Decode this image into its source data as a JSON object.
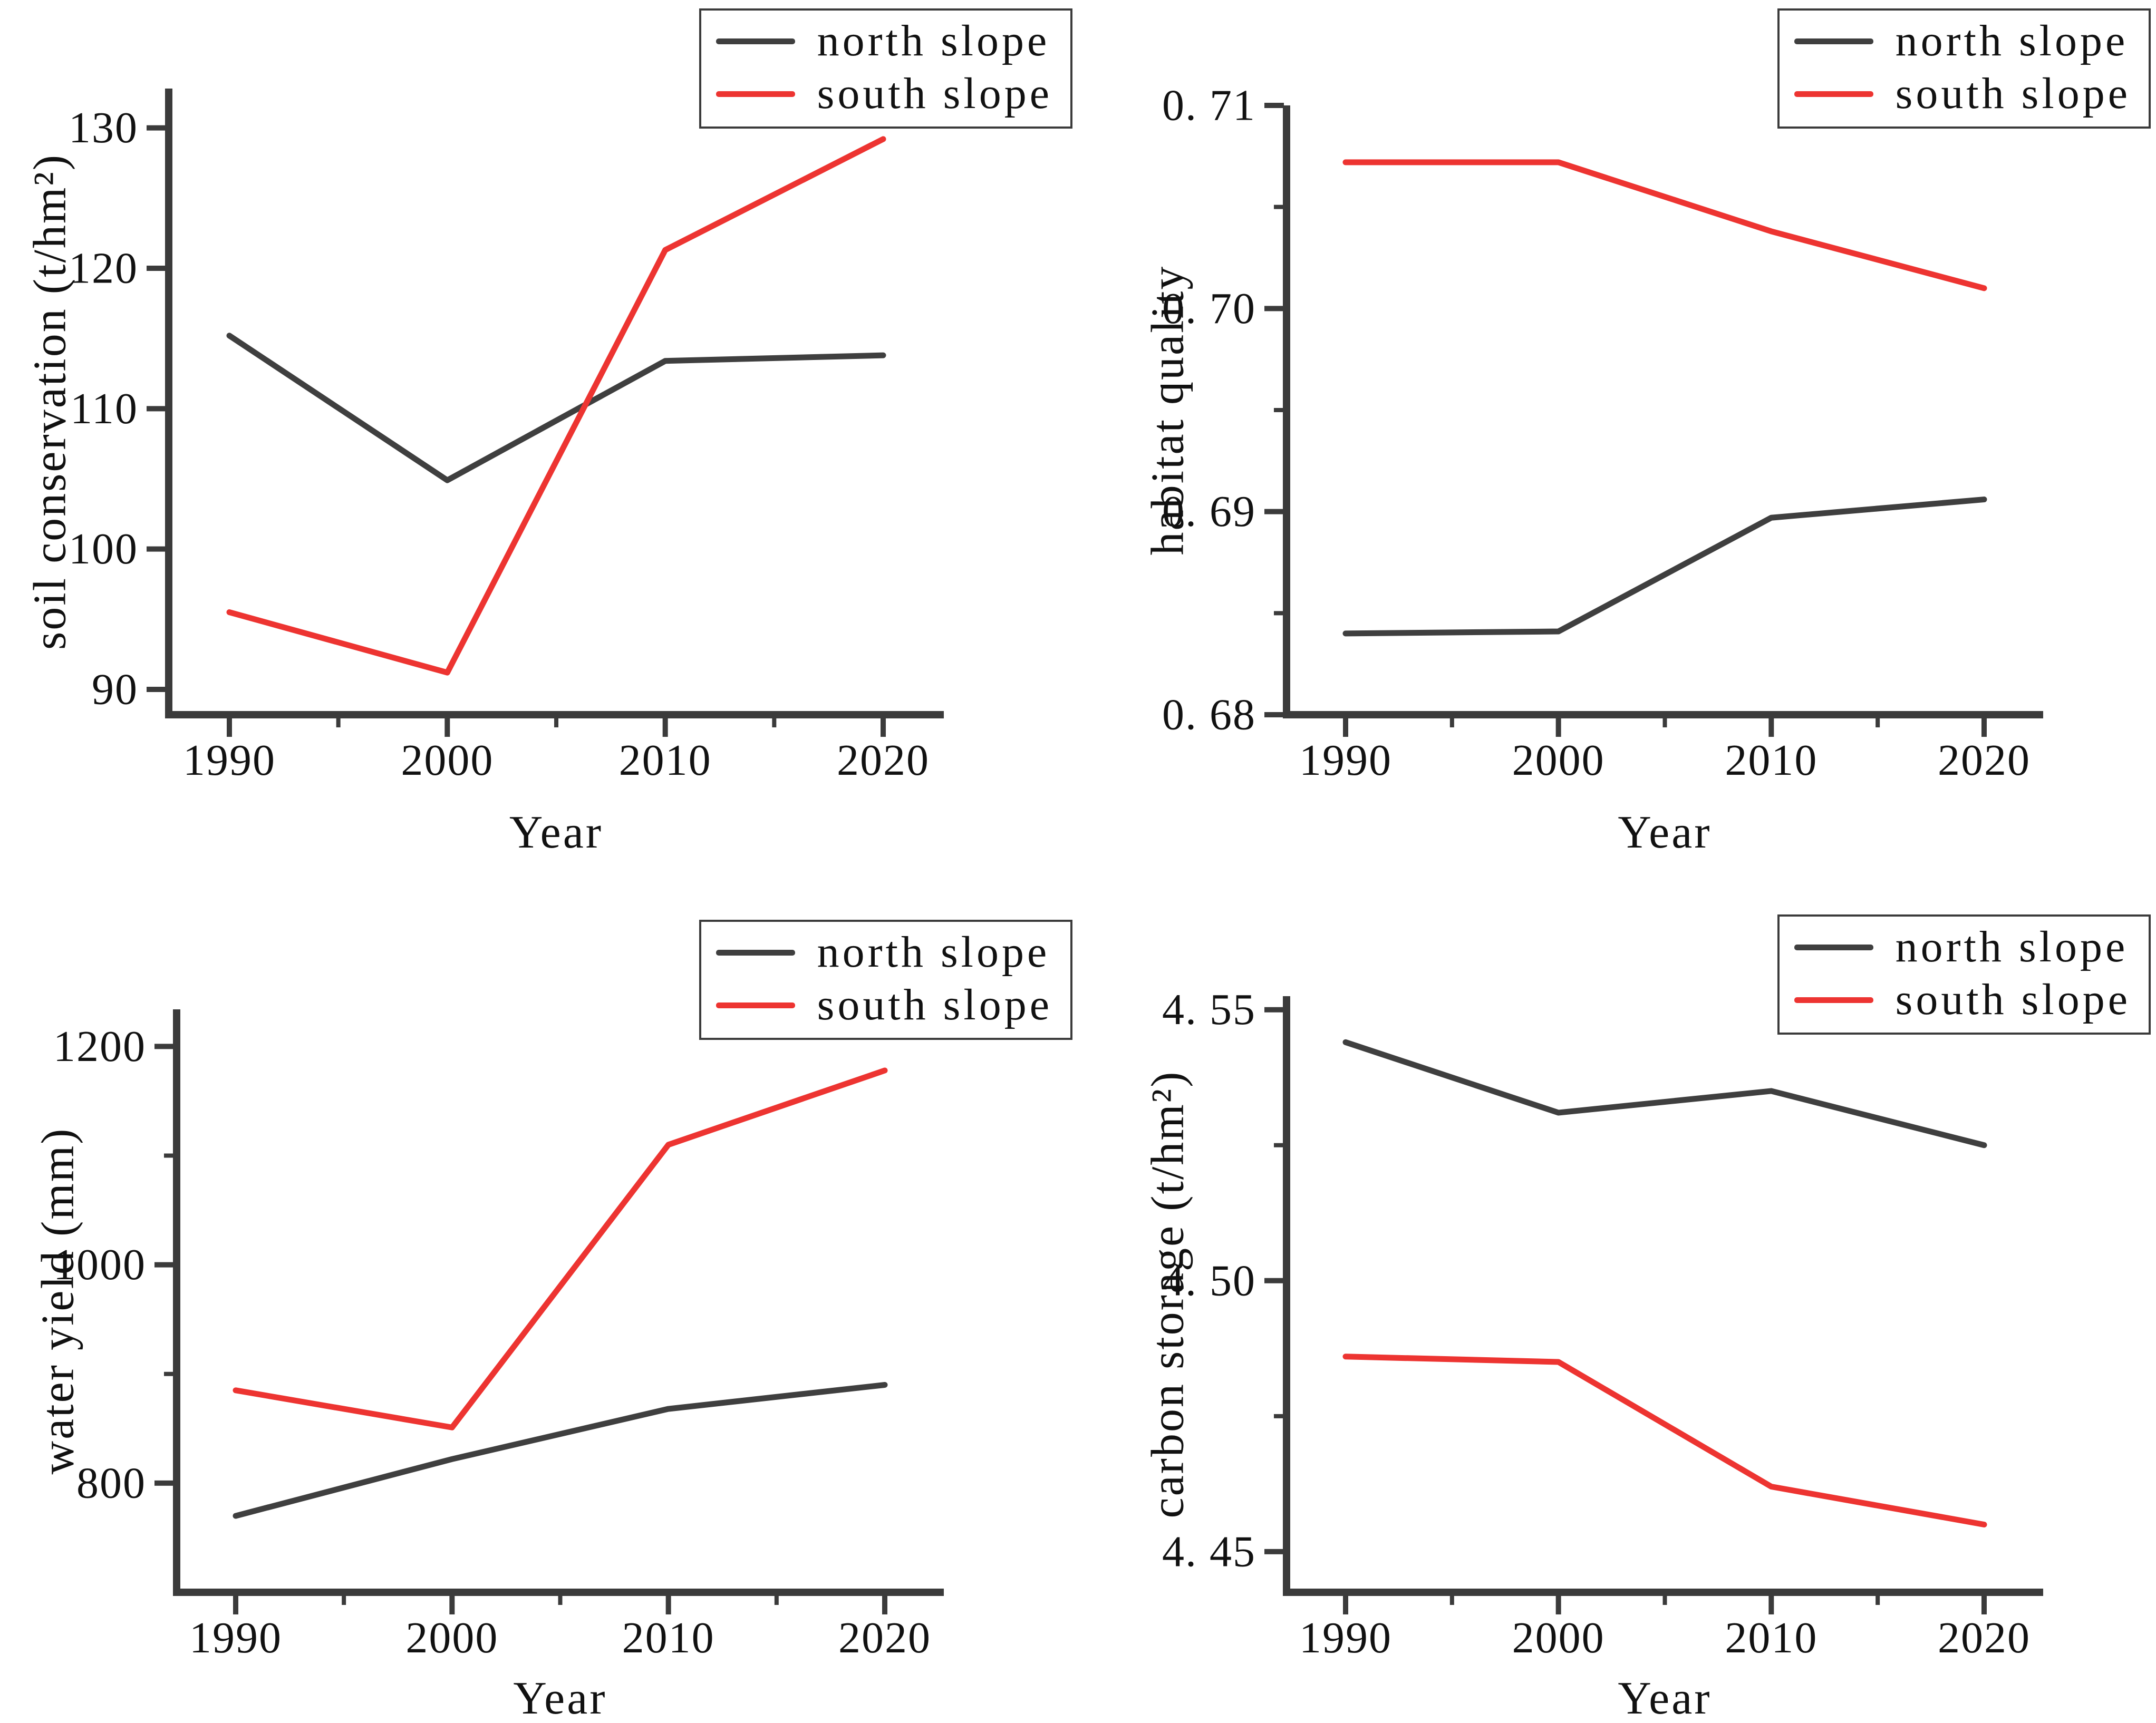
{
  "page": {
    "background": "#ffffff"
  },
  "colors": {
    "north_slope": "#3f3f3f",
    "south_slope": "#ed3431",
    "axis": "#3b3b3b",
    "text": "#111111",
    "legend_border": "#3b3b3b",
    "legend_bg": "#ffffff"
  },
  "legend": {
    "labels": [
      "north slope",
      "south slope"
    ]
  },
  "chart_data": [
    {
      "id": "soil-conservation",
      "type": "line",
      "title": "",
      "xlabel": "Year",
      "ylabel": "soil conservation (t/hm²)",
      "x": [
        1990,
        2000,
        2010,
        2020
      ],
      "x_tick_labels": [
        "1990",
        "2000",
        "2010",
        "2020"
      ],
      "x_minor_between": true,
      "ylim": [
        88.2,
        132.8
      ],
      "y_ticks": [
        90,
        100,
        110,
        120,
        130
      ],
      "y_tick_labels": [
        "90",
        "100",
        "110",
        "120",
        "130"
      ],
      "y_minor_ticks": [],
      "grid": false,
      "legend_position": "top-right",
      "series": [
        {
          "name": "north slope",
          "color_key": "north_slope",
          "values": [
            115.2,
            104.9,
            113.4,
            113.8
          ]
        },
        {
          "name": "south slope",
          "color_key": "south_slope",
          "values": [
            95.5,
            91.2,
            121.3,
            129.2
          ]
        }
      ]
    },
    {
      "id": "habitat-quality",
      "type": "line",
      "title": "",
      "xlabel": "Year",
      "ylabel": "habitat quality",
      "x": [
        1990,
        2000,
        2010,
        2020
      ],
      "x_tick_labels": [
        "1990",
        "2000",
        "2010",
        "2020"
      ],
      "x_minor_between": true,
      "ylim": [
        0.68,
        0.71
      ],
      "y_ticks": [
        0.68,
        0.69,
        0.7,
        0.71
      ],
      "y_tick_labels": [
        "0. 68",
        "0. 69",
        "0. 70",
        "0. 71"
      ],
      "y_minor_ticks": [
        0.685,
        0.695,
        0.705
      ],
      "grid": false,
      "legend_position": "top-right",
      "series": [
        {
          "name": "north slope",
          "color_key": "north_slope",
          "values": [
            0.684,
            0.6841,
            0.6897,
            0.6906
          ]
        },
        {
          "name": "south slope",
          "color_key": "south_slope",
          "values": [
            0.7072,
            0.7072,
            0.7038,
            0.701
          ]
        }
      ]
    },
    {
      "id": "water-yield",
      "type": "line",
      "title": "",
      "xlabel": "Year",
      "ylabel": "water yield (mm)",
      "x": [
        1990,
        2000,
        2010,
        2020
      ],
      "x_tick_labels": [
        "1990",
        "2000",
        "2010",
        "2020"
      ],
      "x_minor_between": true,
      "ylim": [
        700,
        1234
      ],
      "y_ticks": [
        800,
        1000,
        1200
      ],
      "y_tick_labels": [
        "800",
        "1000",
        "1200"
      ],
      "y_minor_ticks": [
        900,
        1100
      ],
      "grid": false,
      "legend_position": "top-right",
      "series": [
        {
          "name": "north slope",
          "color_key": "north_slope",
          "values": [
            770,
            822,
            868,
            890
          ]
        },
        {
          "name": "south slope",
          "color_key": "south_slope",
          "values": [
            885,
            851,
            1110,
            1178
          ]
        }
      ]
    },
    {
      "id": "carbon-storage",
      "type": "line",
      "title": "",
      "xlabel": "Year",
      "ylabel": "carbon storage (t/hm²)",
      "x": [
        1990,
        2000,
        2010,
        2020
      ],
      "x_tick_labels": [
        "1990",
        "2000",
        "2010",
        "2020"
      ],
      "x_minor_between": true,
      "ylim": [
        4.4425,
        4.5525
      ],
      "y_ticks": [
        4.45,
        4.5,
        4.55
      ],
      "y_tick_labels": [
        "4. 45",
        "4. 50",
        "4. 55"
      ],
      "y_minor_ticks": [
        4.475,
        4.525
      ],
      "grid": false,
      "legend_position": "top-right",
      "series": [
        {
          "name": "north slope",
          "color_key": "north_slope",
          "values": [
            4.544,
            4.531,
            4.535,
            4.525
          ]
        },
        {
          "name": "south slope",
          "color_key": "south_slope",
          "values": [
            4.486,
            4.485,
            4.462,
            4.455
          ]
        }
      ]
    }
  ]
}
